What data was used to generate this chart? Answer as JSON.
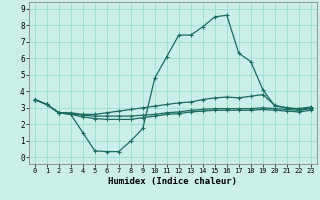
{
  "xlabel": "Humidex (Indice chaleur)",
  "bg_color": "#cceee8",
  "grid_color": "#99ddcc",
  "line_color": "#1a6b60",
  "xlim": [
    -0.5,
    23.5
  ],
  "ylim": [
    -0.4,
    9.4
  ],
  "xticks": [
    0,
    1,
    2,
    3,
    4,
    5,
    6,
    7,
    8,
    9,
    10,
    11,
    12,
    13,
    14,
    15,
    16,
    17,
    18,
    19,
    20,
    21,
    22,
    23
  ],
  "yticks": [
    0,
    1,
    2,
    3,
    4,
    5,
    6,
    7,
    8,
    9
  ],
  "curve1_x": [
    0,
    1,
    2,
    3,
    4,
    5,
    6,
    7,
    8,
    9,
    10,
    11,
    12,
    13,
    14,
    15,
    16,
    17,
    18,
    19,
    20,
    21,
    22,
    23
  ],
  "curve1_y": [
    3.5,
    3.2,
    2.7,
    2.6,
    1.5,
    0.4,
    0.35,
    0.35,
    1.0,
    1.75,
    4.8,
    6.1,
    7.4,
    7.4,
    7.9,
    8.5,
    8.6,
    6.3,
    5.8,
    4.1,
    3.1,
    3.0,
    2.9,
    3.0
  ],
  "curve2_x": [
    0,
    1,
    2,
    3,
    4,
    5,
    6,
    7,
    8,
    9,
    10,
    11,
    12,
    13,
    14,
    15,
    16,
    17,
    18,
    19,
    20,
    21,
    22,
    23
  ],
  "curve2_y": [
    3.5,
    3.2,
    2.7,
    2.7,
    2.6,
    2.6,
    2.7,
    2.8,
    2.9,
    3.0,
    3.1,
    3.2,
    3.3,
    3.35,
    3.5,
    3.6,
    3.65,
    3.6,
    3.7,
    3.8,
    3.15,
    3.0,
    2.95,
    3.05
  ],
  "curve3_x": [
    0,
    1,
    2,
    3,
    4,
    5,
    6,
    7,
    8,
    9,
    10,
    11,
    12,
    13,
    14,
    15,
    16,
    17,
    18,
    19,
    20,
    21,
    22,
    23
  ],
  "curve3_y": [
    3.5,
    3.2,
    2.7,
    2.65,
    2.55,
    2.5,
    2.5,
    2.5,
    2.5,
    2.55,
    2.6,
    2.7,
    2.75,
    2.85,
    2.9,
    2.95,
    2.95,
    2.95,
    2.95,
    3.0,
    2.95,
    2.9,
    2.85,
    2.95
  ],
  "curve4_x": [
    0,
    1,
    2,
    3,
    4,
    5,
    6,
    7,
    8,
    9,
    10,
    11,
    12,
    13,
    14,
    15,
    16,
    17,
    18,
    19,
    20,
    21,
    22,
    23
  ],
  "curve4_y": [
    3.5,
    3.2,
    2.7,
    2.6,
    2.45,
    2.35,
    2.3,
    2.3,
    2.3,
    2.4,
    2.5,
    2.6,
    2.65,
    2.75,
    2.8,
    2.85,
    2.85,
    2.85,
    2.85,
    2.9,
    2.85,
    2.8,
    2.75,
    2.85
  ]
}
